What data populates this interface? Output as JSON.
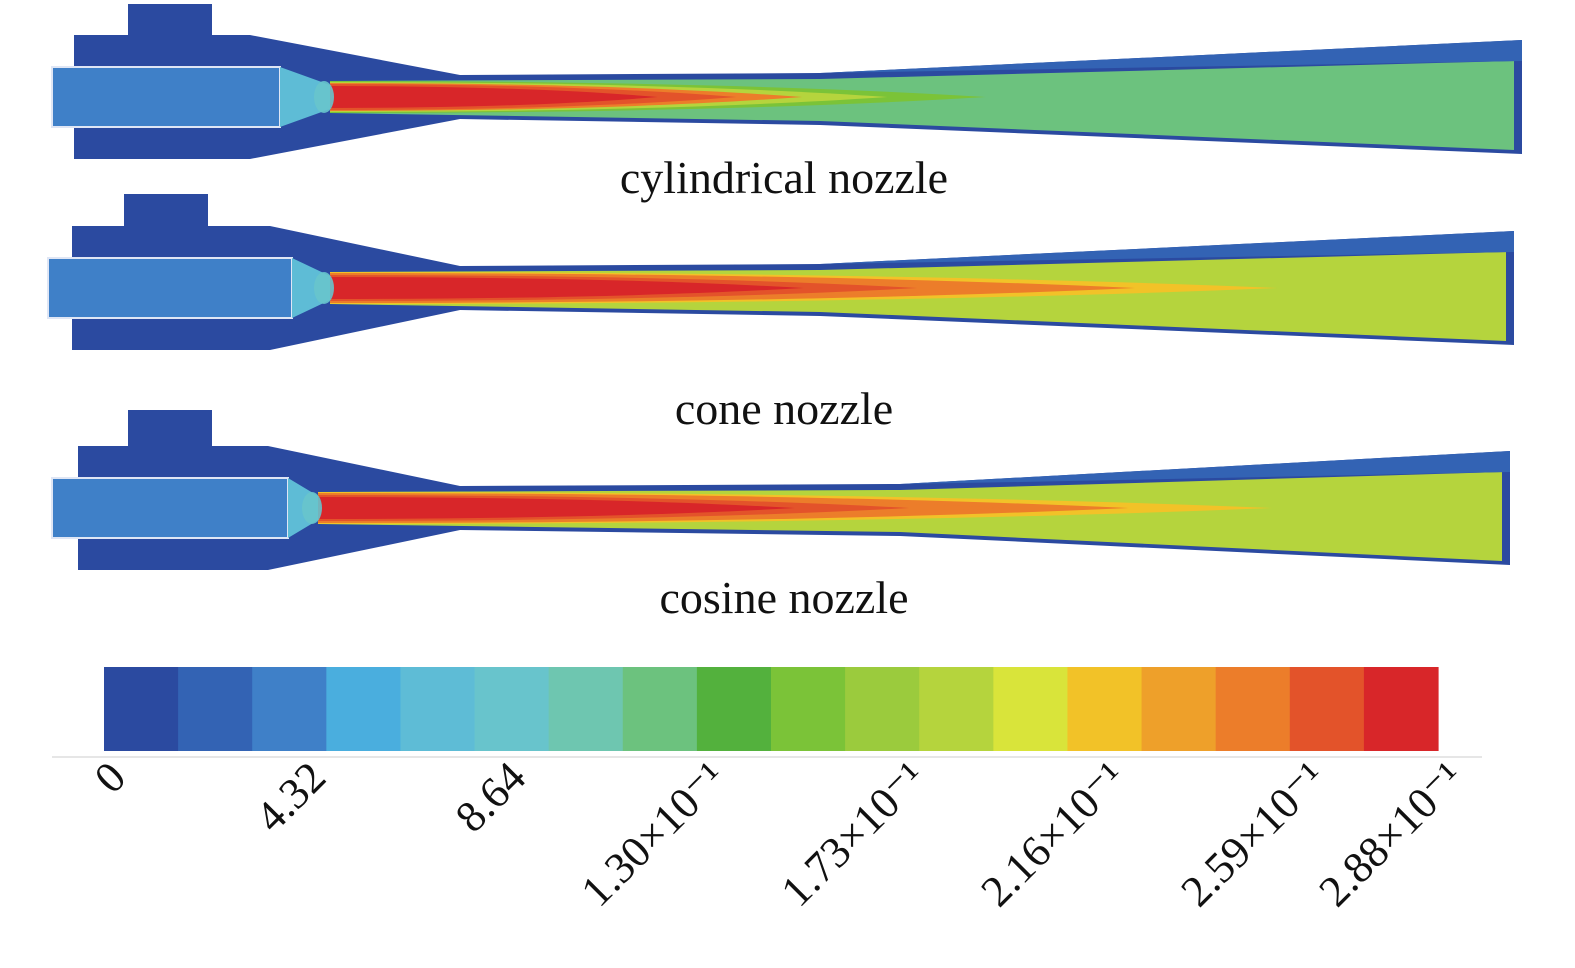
{
  "nozzles": [
    {
      "caption": "cylindrical nozzle",
      "peak_level": 17,
      "peak_len": 0.55,
      "tail_level": 7
    },
    {
      "caption": "cone nozzle",
      "peak_level": 17,
      "peak_len": 0.8,
      "tail_level": 11
    },
    {
      "caption": "cosine nozzle",
      "peak_level": 17,
      "peak_len": 0.8,
      "tail_level": 11
    }
  ],
  "colorbar": {
    "colors": [
      "#2b4aa0",
      "#3363b4",
      "#3f80c8",
      "#4aaede",
      "#5ebcd6",
      "#68c4cc",
      "#6ec6b0",
      "#6cc27e",
      "#53b13d",
      "#7bc338",
      "#9bcb3d",
      "#b5d43d",
      "#d9e43a",
      "#f2c228",
      "#eea02a",
      "#ec7d2a",
      "#e3532a",
      "#d82629"
    ],
    "tick_labels": [
      "0",
      "4.32",
      "8.64",
      "1.30×10⁻¹",
      "1.73×10⁻¹",
      "2.16×10⁻¹",
      "2.59×10⁻¹",
      "2.88×10⁻¹"
    ]
  }
}
